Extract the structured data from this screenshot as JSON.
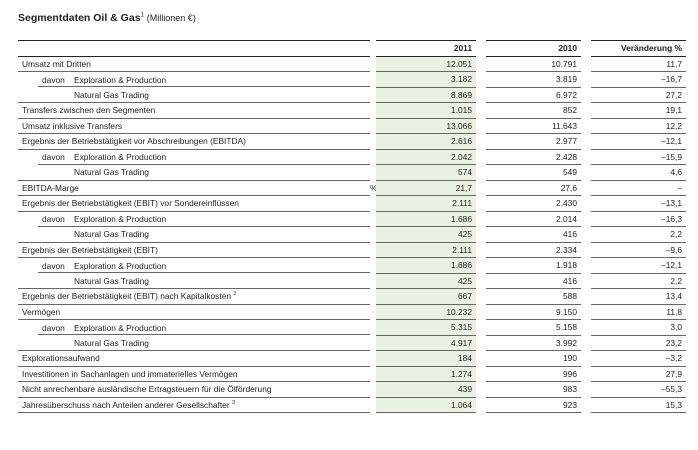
{
  "title": {
    "main": "Segmentdaten Oil & Gas",
    "footnote": "1",
    "unit": "(Millionen €)"
  },
  "columns": [
    "2011",
    "2010",
    "Veränderung %"
  ],
  "rows": [
    {
      "label": "Umsatz mit Dritten",
      "indent": 0,
      "unit": "",
      "v2011": "12.051",
      "v2010": "10.791",
      "change": "11,7"
    },
    {
      "label": "Exploration & Production",
      "prefix": "davon",
      "indent": 1,
      "unit": "",
      "v2011": "3.182",
      "v2010": "3.819",
      "change": "–16,7"
    },
    {
      "label": "Natural Gas Trading",
      "indent": 2,
      "unit": "",
      "v2011": "8.869",
      "v2010": "6.972",
      "change": "27,2"
    },
    {
      "label": "Transfers zwischen den Segmenten",
      "indent": 0,
      "unit": "",
      "v2011": "1.015",
      "v2010": "852",
      "change": "19,1"
    },
    {
      "label": "Umsatz inklusive Transfers",
      "indent": 0,
      "unit": "",
      "v2011": "13.066",
      "v2010": "11.643",
      "change": "12,2"
    },
    {
      "label": "Ergebnis der Betriebstätigkeit vor Abschreibungen (EBITDA)",
      "indent": 0,
      "unit": "",
      "v2011": "2.616",
      "v2010": "2.977",
      "change": "–12,1"
    },
    {
      "label": "Exploration & Production",
      "prefix": "davon",
      "indent": 1,
      "unit": "",
      "v2011": "2.042",
      "v2010": "2.428",
      "change": "–15,9"
    },
    {
      "label": "Natural Gas Trading",
      "indent": 2,
      "unit": "",
      "v2011": "574",
      "v2010": "549",
      "change": "4,6"
    },
    {
      "label": "EBITDA-Marge",
      "indent": 0,
      "unit": "%",
      "v2011": "21,7",
      "v2010": "27,6",
      "change": "–"
    },
    {
      "label": "Ergebnis der Betriebstätigkeit (EBIT) vor Sondereinflüssen",
      "indent": 0,
      "unit": "",
      "v2011": "2.111",
      "v2010": "2.430",
      "change": "–13,1"
    },
    {
      "label": "Exploration & Production",
      "prefix": "davon",
      "indent": 1,
      "unit": "",
      "v2011": "1.686",
      "v2010": "2.014",
      "change": "–16,3"
    },
    {
      "label": "Natural Gas Trading",
      "indent": 2,
      "unit": "",
      "v2011": "425",
      "v2010": "416",
      "change": "2,2"
    },
    {
      "label": "Ergebnis der Betriebstätigkeit (EBIT)",
      "indent": 0,
      "unit": "",
      "v2011": "2.111",
      "v2010": "2.334",
      "change": "–9,6"
    },
    {
      "label": "Exploration & Production",
      "prefix": "davon",
      "indent": 1,
      "unit": "",
      "v2011": "1.686",
      "v2010": "1.918",
      "change": "–12,1"
    },
    {
      "label": "Natural Gas Trading",
      "indent": 2,
      "unit": "",
      "v2011": "425",
      "v2010": "416",
      "change": "2,2"
    },
    {
      "label": "Ergebnis der Betriebstätigkeit (EBIT) nach Kapitalkosten",
      "footnote": "2",
      "indent": 0,
      "unit": "",
      "v2011": "667",
      "v2010": "588",
      "change": "13,4"
    },
    {
      "label": "Vermögen",
      "indent": 0,
      "unit": "",
      "v2011": "10.232",
      "v2010": "9.150",
      "change": "11,8"
    },
    {
      "label": "Exploration & Production",
      "prefix": "davon",
      "indent": 1,
      "unit": "",
      "v2011": "5.315",
      "v2010": "5.158",
      "change": "3,0"
    },
    {
      "label": "Natural Gas Trading",
      "indent": 2,
      "unit": "",
      "v2011": "4.917",
      "v2010": "3.992",
      "change": "23,2"
    },
    {
      "label": "Explorationsaufwand",
      "indent": 0,
      "unit": "",
      "v2011": "184",
      "v2010": "190",
      "change": "–3,2"
    },
    {
      "label": "Investitionen in Sachanlagen und immaterielles Vermögen",
      "indent": 0,
      "unit": "",
      "v2011": "1.274",
      "v2010": "996",
      "change": "27,9"
    },
    {
      "label": "Nicht anrechenbare ausländische Ertragsteuern für die Ölförderung",
      "indent": 0,
      "unit": "",
      "v2011": "439",
      "v2010": "983",
      "change": "–55,3"
    },
    {
      "label": "Jahresüberschuss nach Anteilen anderer Gesellschafter",
      "footnote": "3",
      "indent": 0,
      "unit": "",
      "v2011": "1.064",
      "v2010": "923",
      "change": "15,3"
    }
  ]
}
